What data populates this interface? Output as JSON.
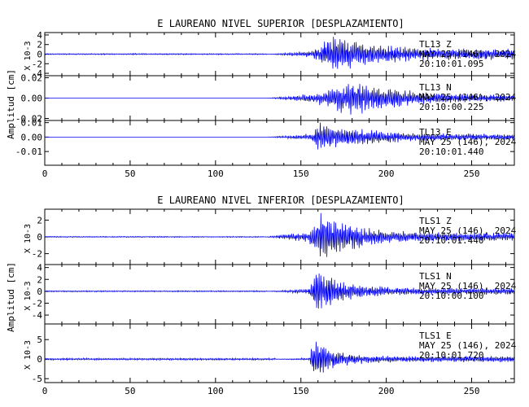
{
  "chart_data": [
    {
      "type": "line",
      "title": "E LAUREANO NIVEL SUPERIOR [DESPLAZAMIENTO]",
      "ylabel": "Amplitud [cm]",
      "xlim": [
        0,
        275
      ],
      "xticks": [
        "0",
        "50",
        "100",
        "150",
        "200",
        "250"
      ],
      "line_color": "#0000ee",
      "panels": [
        {
          "multiplier": "X 10-3",
          "ylim": [
            -4.5,
            4.5
          ],
          "yticks": [
            "4",
            "2",
            "0",
            "-2",
            "-4"
          ],
          "ytick_values": [
            4,
            2,
            0,
            -2,
            -4
          ],
          "station": "TL13   Z",
          "date": "MAY 25 (146), 2024",
          "time": "20:10:01.095",
          "series": {
            "onset": 130,
            "main_start": 157,
            "end": 275,
            "noise": 0.03,
            "pre_amp": 0.9,
            "peak_amp": 4.3,
            "peak_at": 170,
            "coda_amp": 1.2,
            "decay": 22
          }
        },
        {
          "multiplier": "",
          "ylim": [
            -0.022,
            0.022
          ],
          "yticks": [
            "0.02",
            "0.00",
            "-0.02"
          ],
          "ytick_values": [
            0.02,
            0,
            -0.02
          ],
          "station": "TL13   N",
          "date": "MAY 25 (146), 2024",
          "time": "20:10:00.225",
          "series": {
            "onset": 130,
            "main_start": 157,
            "end": 275,
            "noise": 0.0002,
            "pre_amp": 0.005,
            "peak_amp": 0.019,
            "peak_at": 180,
            "coda_amp": 0.003,
            "decay": 28
          }
        },
        {
          "multiplier": "",
          "ylim": [
            -0.0195,
            0.0115
          ],
          "yticks": [
            "0.01",
            "0.00",
            "-0.01"
          ],
          "ytick_values": [
            0.01,
            0,
            -0.01
          ],
          "station": "TL13   E",
          "date": "MAY 25 (146), 2024",
          "time": "20:10:01.440",
          "series": {
            "onset": 130,
            "main_start": 157,
            "end": 275,
            "noise": 0.0002,
            "pre_amp": 0.003,
            "peak_amp": 0.011,
            "peak_at": 160,
            "coda_amp": 0.002,
            "decay": 30
          }
        }
      ]
    },
    {
      "type": "line",
      "title": "E LAUREANO NIVEL INFERIOR [DESPLAZAMIENTO]",
      "ylabel": "Amplitud [cm]",
      "xlim": [
        0,
        275
      ],
      "xticks": [
        "0",
        "50",
        "100",
        "150",
        "200",
        "250"
      ],
      "line_color": "#0000ee",
      "panels": [
        {
          "multiplier": "X 10-3",
          "ylim": [
            -3.3,
            3.3
          ],
          "yticks": [
            "2",
            "0",
            "-2"
          ],
          "ytick_values": [
            2,
            0,
            -2
          ],
          "station": "TLS1   Z",
          "date": "MAY 25 (146), 2024",
          "time": "20:10:01.440",
          "series": {
            "onset": 128,
            "main_start": 155,
            "end": 275,
            "noise": 0.02,
            "pre_amp": 0.8,
            "peak_amp": 3.3,
            "peak_at": 162,
            "coda_amp": 0.5,
            "decay": 20
          }
        },
        {
          "multiplier": "X 10-3",
          "ylim": [
            -5.5,
            4.5
          ],
          "yticks": [
            "4",
            "2",
            "0",
            "-2",
            "-4"
          ],
          "ytick_values": [
            4,
            2,
            0,
            -2,
            -4
          ],
          "station": "TLS1   N",
          "date": "MAY 25 (146), 2024",
          "time": "20:10:00.100",
          "series": {
            "onset": 130,
            "main_start": 155,
            "end": 275,
            "noise": 0.02,
            "pre_amp": 0.6,
            "peak_amp": 4.5,
            "peak_at": 160,
            "coda_amp": 0.6,
            "decay": 14
          }
        },
        {
          "multiplier": "X 10-3",
          "ylim": [
            -6,
            9
          ],
          "yticks": [
            "5",
            "0",
            "-5"
          ],
          "ytick_values": [
            5,
            0,
            -5
          ],
          "station": "TLS1   E",
          "date": "MAY 25 (146), 2024",
          "time": "20:10:01.720",
          "series": {
            "onset": 135,
            "main_start": 155,
            "end": 275,
            "noise": 0.03,
            "pre_amp": 0.4,
            "peak_amp": 6.0,
            "peak_at": 157,
            "coda_amp": 0.8,
            "decay": 12
          }
        }
      ]
    }
  ]
}
